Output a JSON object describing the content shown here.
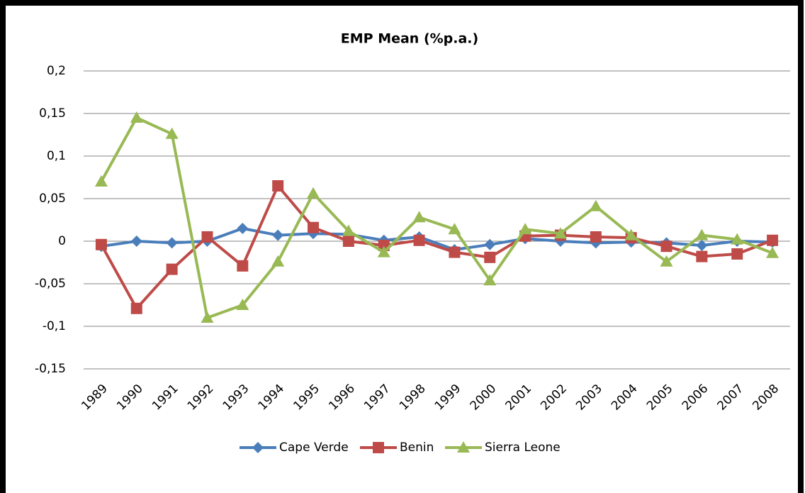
{
  "chart_data": {
    "type": "line",
    "title": "EMP Mean (%p.a.)",
    "categories": [
      "1989",
      "1990",
      "1991",
      "1992",
      "1993",
      "1994",
      "1995",
      "1996",
      "1997",
      "1998",
      "1999",
      "2000",
      "2001",
      "2002",
      "2003",
      "2004",
      "2005",
      "2006",
      "2007",
      "2008"
    ],
    "series": [
      {
        "name": "Cape Verde",
        "color": "#4a7ebb",
        "marker": "diamond",
        "values": [
          -0.006,
          0,
          -0.002,
          0,
          0.015,
          0.007,
          0.009,
          0.008,
          0.001,
          0.005,
          -0.01,
          -0.004,
          0.003,
          0,
          -0.002,
          -0.001,
          -0.002,
          -0.005,
          0,
          -0.001
        ]
      },
      {
        "name": "Benin",
        "color": "#be4b48",
        "marker": "square",
        "values": [
          -0.004,
          -0.079,
          -0.033,
          0.005,
          -0.029,
          0.065,
          0.016,
          0,
          -0.005,
          0.001,
          -0.013,
          -0.019,
          0.006,
          0.007,
          0.005,
          0.004,
          -0.006,
          -0.018,
          -0.015,
          0.001
        ]
      },
      {
        "name": "Sierra Leone",
        "color": "#98b954",
        "marker": "triangle",
        "values": [
          0.07,
          0.145,
          0.126,
          -0.09,
          -0.075,
          -0.024,
          0.056,
          0.012,
          -0.013,
          0.028,
          0.014,
          -0.046,
          0.014,
          0.009,
          0.041,
          0.007,
          -0.024,
          0.007,
          0.002,
          -0.014
        ]
      }
    ],
    "ylim": [
      -0.15,
      0.2
    ],
    "yticks": [
      {
        "value": -0.15,
        "label": "-0,15"
      },
      {
        "value": -0.1,
        "label": "-0,1"
      },
      {
        "value": -0.05,
        "label": "-0,05"
      },
      0,
      {
        "value": 0.05,
        "label": "0,05"
      },
      {
        "value": 0.1,
        "label": "0,1"
      },
      {
        "value": 0.15,
        "label": "0,15"
      },
      {
        "value": 0.2,
        "label": "0,2"
      }
    ],
    "grid": true,
    "legend": "bottom"
  }
}
